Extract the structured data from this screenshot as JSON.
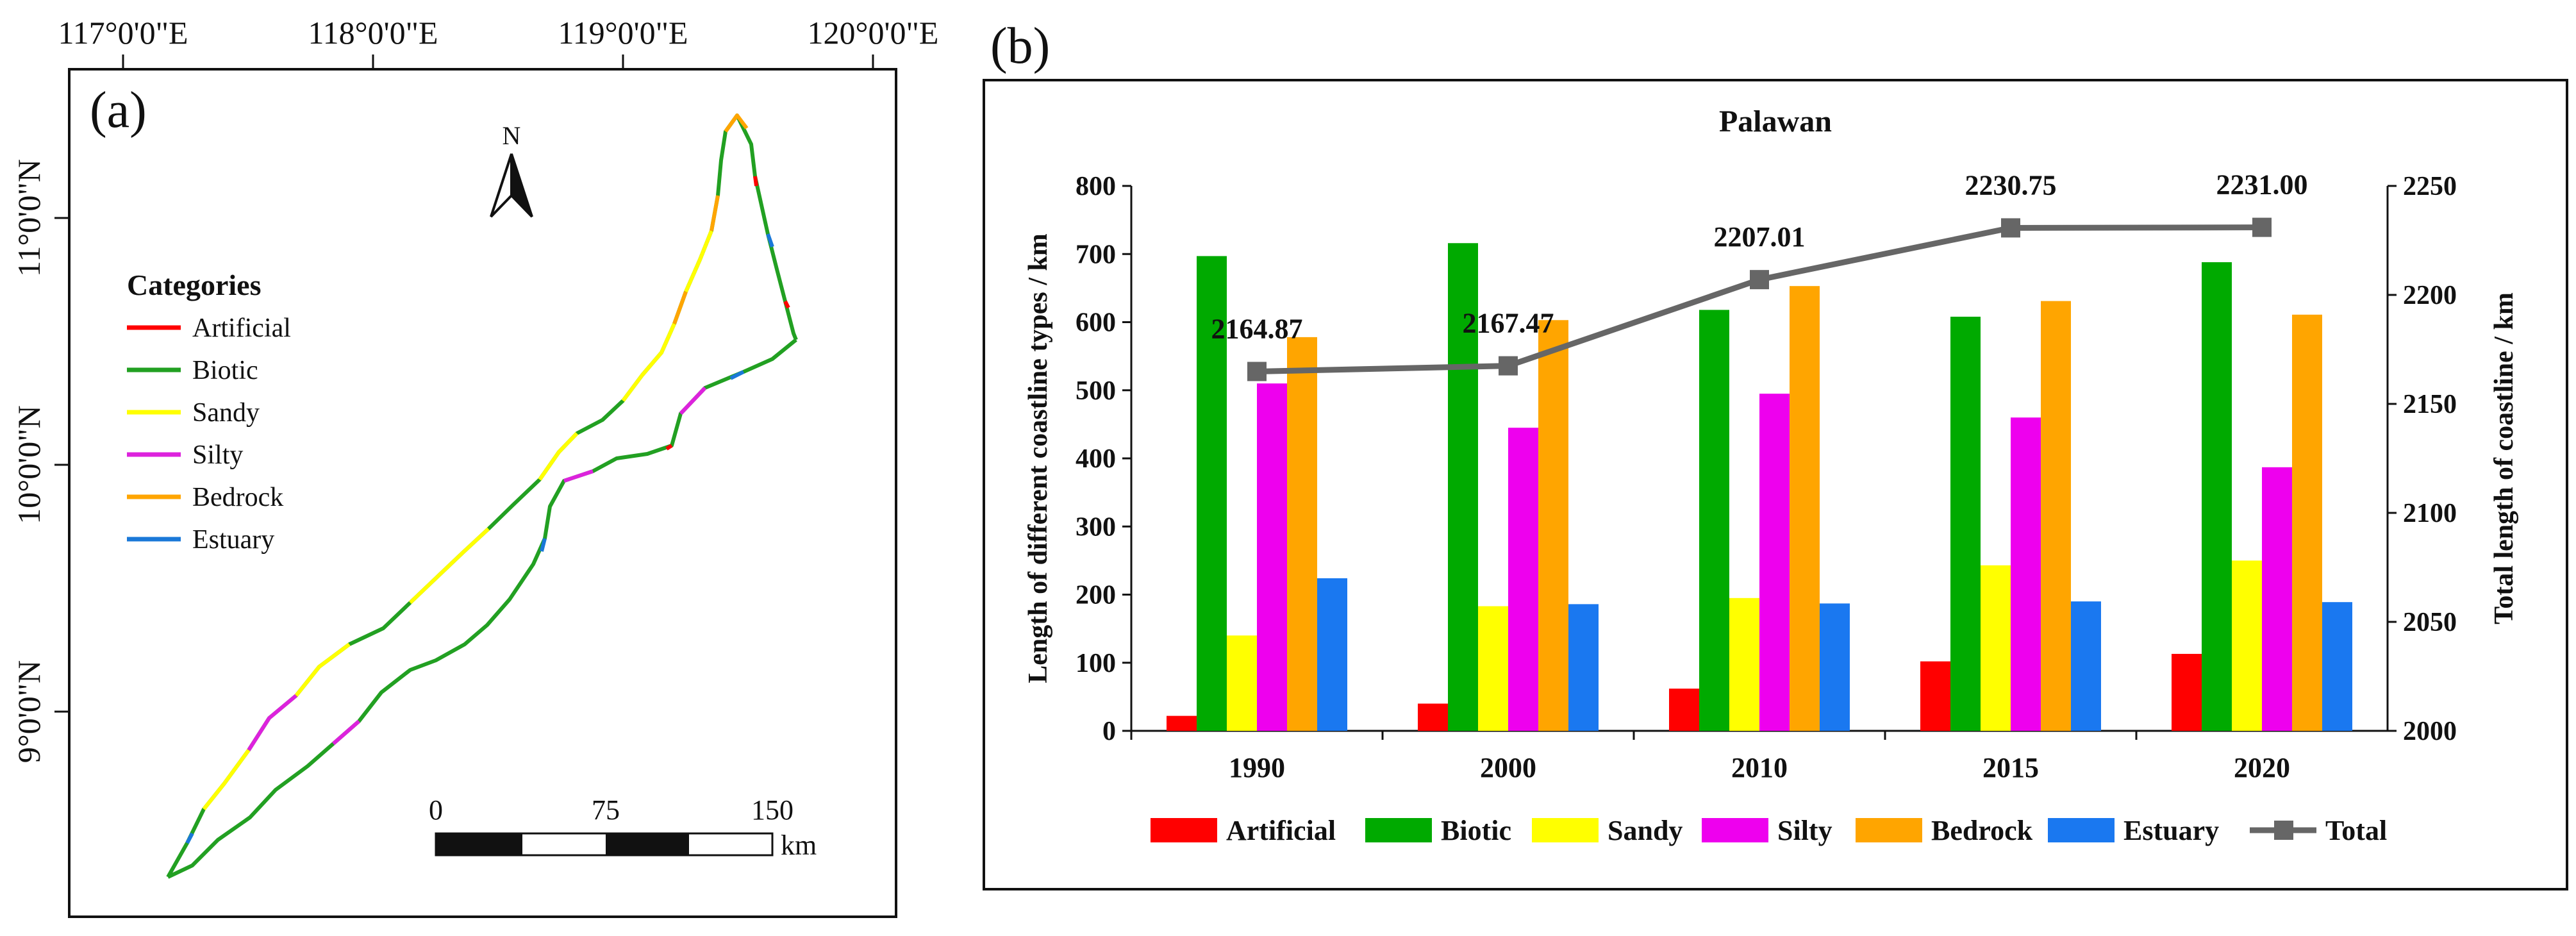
{
  "panel_a": {
    "label": "(a)",
    "lon_ticks": [
      "117°0'0\"E",
      "118°0'0\"E",
      "119°0'0\"E",
      "120°0'0\"E"
    ],
    "lat_ticks": [
      "11°0'0\"N",
      "10°0'0\"N",
      "9°0'0\"N"
    ],
    "north_label": "N",
    "legend_title": "Categories",
    "legend_items": [
      {
        "label": "Artificial",
        "color": "#ff0000"
      },
      {
        "label": "Biotic",
        "color": "#22a022"
      },
      {
        "label": "Sandy",
        "color": "#ffff00"
      },
      {
        "label": "Silty",
        "color": "#dd22dd"
      },
      {
        "label": "Bedrock",
        "color": "#ffa500"
      },
      {
        "label": "Estuary",
        "color": "#1a78d8"
      }
    ],
    "scale_ticks": [
      "0",
      "75",
      "150"
    ],
    "scale_unit": "km"
  },
  "panel_b": {
    "label": "(b)"
  },
  "chart_data": {
    "type": "bar",
    "title": "Palawan",
    "categories": [
      "1990",
      "2000",
      "2010",
      "2015",
      "2020"
    ],
    "ylabel": "Length of different  coastline types / km",
    "ylabel_right": "Total length of coastline / km",
    "ylim": [
      0,
      800
    ],
    "ylim_right": [
      2000,
      2250
    ],
    "yticks": [
      "0",
      "100",
      "200",
      "300",
      "400",
      "500",
      "600",
      "700",
      "800"
    ],
    "yticks_right": [
      "2000",
      "2050",
      "2100",
      "2150",
      "2200",
      "2250"
    ],
    "series": [
      {
        "name": "Artificial",
        "color": "#ff0000",
        "values": [
          22,
          40,
          62,
          102,
          113
        ]
      },
      {
        "name": "Biotic",
        "color": "#00aa00",
        "values": [
          697,
          716,
          618,
          608,
          688
        ]
      },
      {
        "name": "Sandy",
        "color": "#ffff00",
        "values": [
          140,
          183,
          195,
          243,
          250
        ]
      },
      {
        "name": "Silty",
        "color": "#ee00ee",
        "values": [
          510,
          445,
          495,
          460,
          387
        ]
      },
      {
        "name": "Bedrock",
        "color": "#ffa500",
        "values": [
          578,
          603,
          653,
          631,
          611
        ]
      },
      {
        "name": "Estuary",
        "color": "#1a78f0",
        "values": [
          224,
          186,
          187,
          190,
          189
        ]
      }
    ],
    "line": {
      "name": "Total",
      "color": "#666666",
      "values": [
        2164.87,
        2167.47,
        2207.01,
        2230.75,
        2231.0
      ],
      "labels": [
        "2164.87",
        "2167.47",
        "2207.01",
        "2230.75",
        "2231.00"
      ]
    },
    "legend": "bottom"
  }
}
